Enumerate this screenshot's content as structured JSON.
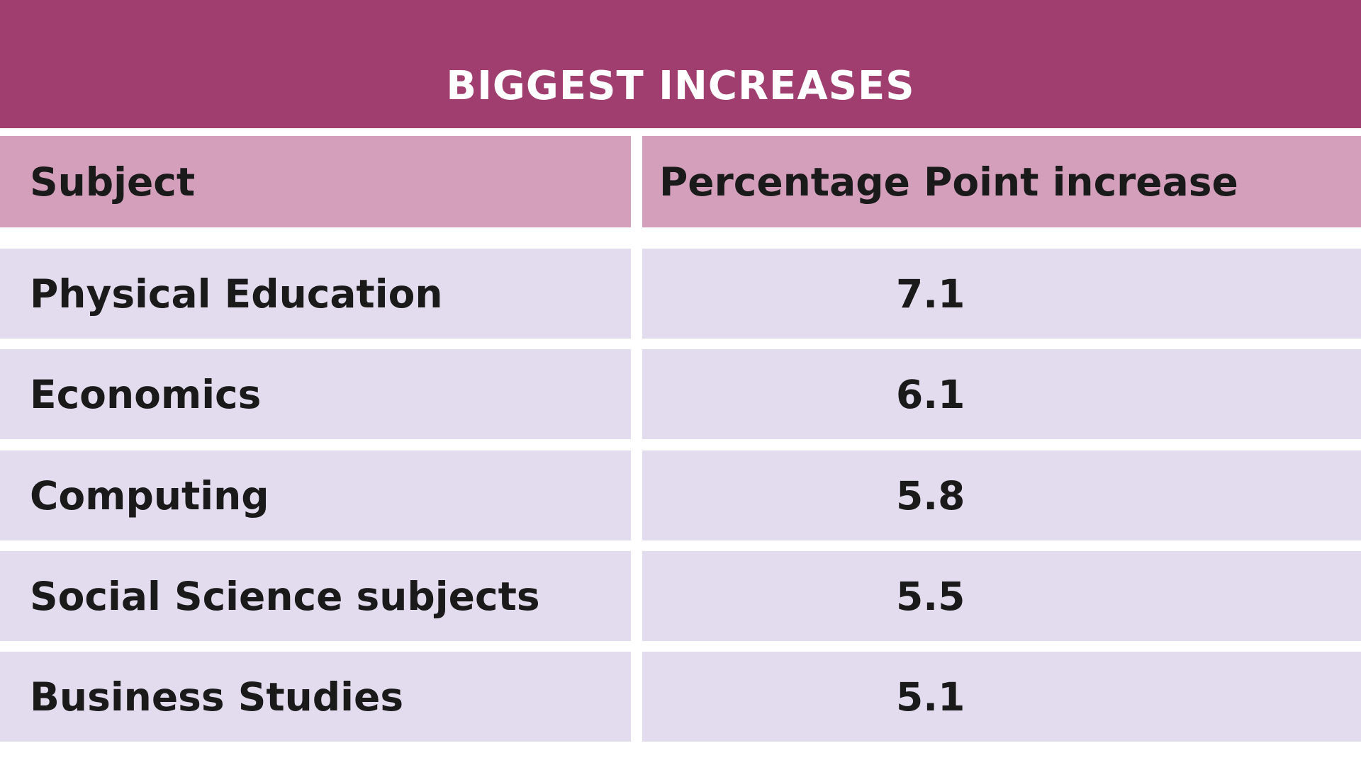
{
  "title": "BIGGEST INCREASES",
  "table": {
    "header": [
      "Subject",
      "Percentage Point increase"
    ],
    "rows": [
      [
        "Physical Education",
        7.1
      ],
      [
        "Economics",
        6.1
      ],
      [
        "Computing",
        5.8
      ],
      [
        "Social Science subjects",
        5.5
      ],
      [
        "Business Studies",
        5.1
      ]
    ]
  }
}
